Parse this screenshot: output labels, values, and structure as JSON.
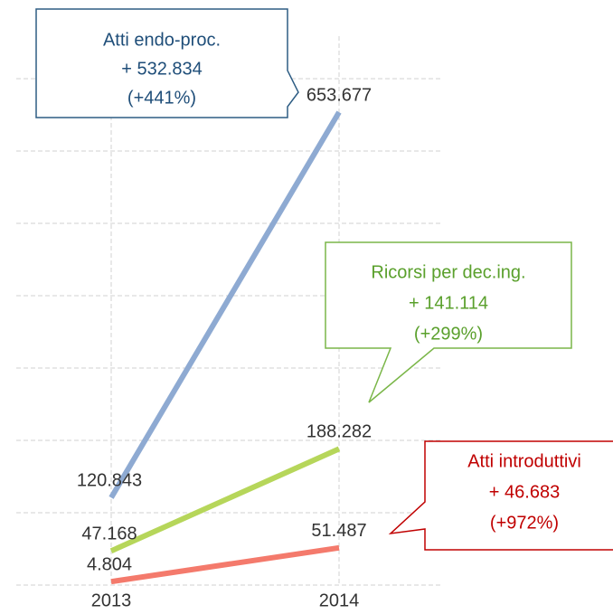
{
  "chart_data": {
    "type": "line",
    "categories": [
      "2013",
      "2014"
    ],
    "series": [
      {
        "color": "#8eaad2",
        "values": [
          120843,
          653677
        ],
        "value_labels": [
          "120.843",
          "653.677"
        ]
      },
      {
        "color": "#b6d65a",
        "values": [
          47168,
          188282
        ],
        "value_labels": [
          "47.168",
          "188.282"
        ]
      },
      {
        "color": "#f47a6c",
        "values": [
          4804,
          51487
        ],
        "value_labels": [
          "4.804",
          "51.487"
        ]
      }
    ],
    "ylim": [
      0,
      750000
    ],
    "yticks": [
      0,
      100000,
      200000,
      300000,
      400000,
      500000,
      600000,
      700000
    ],
    "grid": true,
    "annotations": [
      {
        "lines": [
          "Atti endo-proc.",
          "+ 532.834",
          "(+441%)"
        ],
        "color": "#1f4e79",
        "border": "#2e5d84"
      },
      {
        "lines": [
          "Ricorsi per dec.ing.",
          "+ 141.114",
          "(+299%)"
        ],
        "color": "#5aa02c",
        "border": "#7ab648"
      },
      {
        "lines": [
          "Atti introduttivi",
          "+ 46.683",
          "(+972%)"
        ],
        "color": "#c00000",
        "border": "#c00000"
      }
    ]
  }
}
